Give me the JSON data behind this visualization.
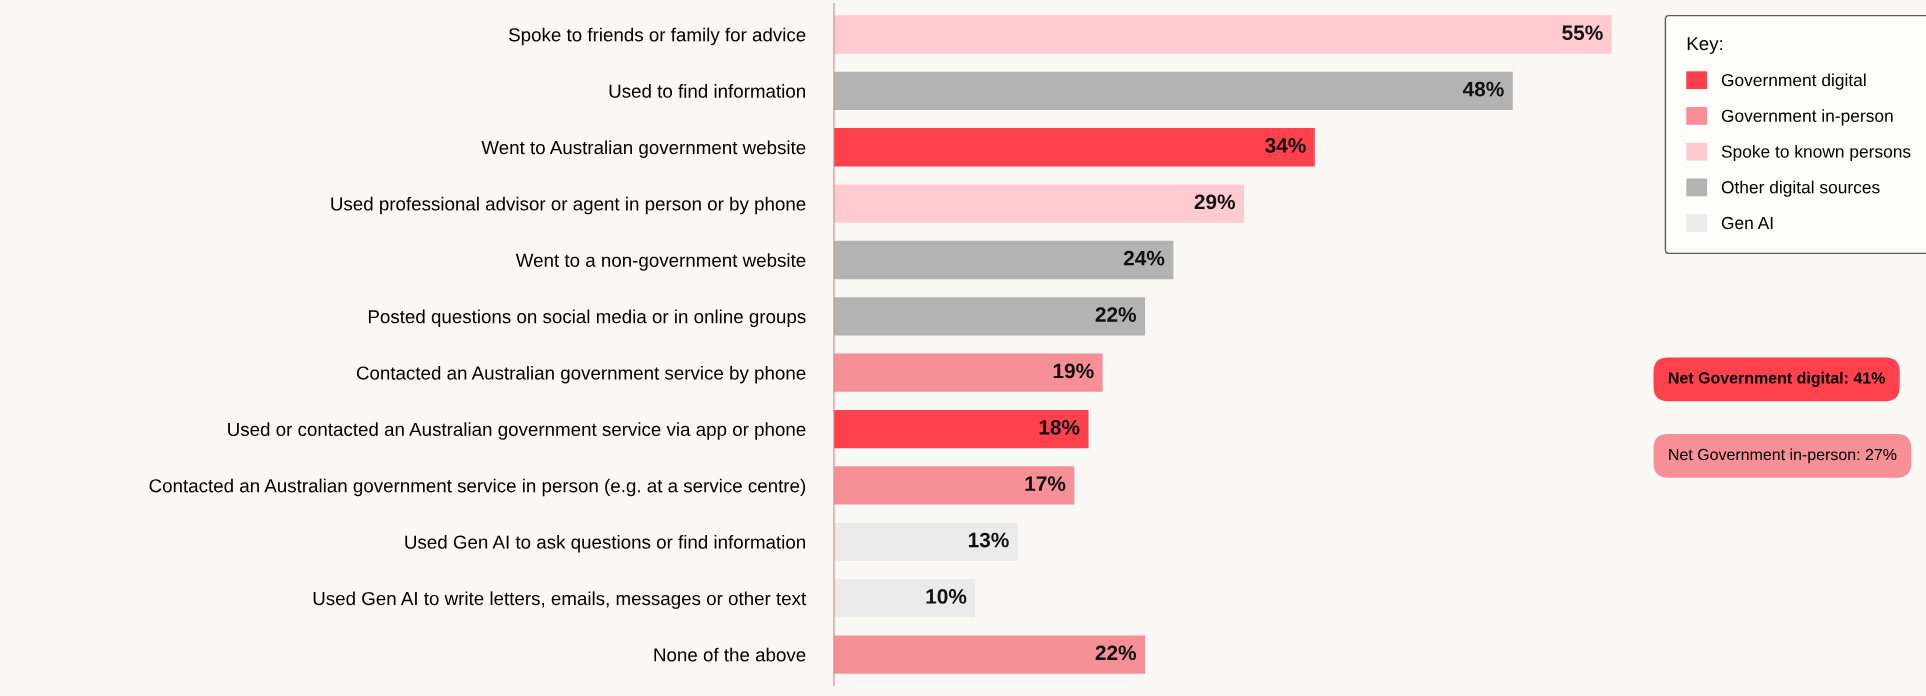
{
  "chart_data": {
    "type": "bar",
    "orientation": "horizontal",
    "legend": "right",
    "legend_title": "Key:",
    "grid": false,
    "categories": [
      "Spoke to friends or family for advice",
      "Used to find information",
      "Went to Australian government website",
      "Used professional advisor or agent in person or by phone",
      "Went to a non-government website",
      "Posted questions on social media or in online groups",
      "Contacted an Australian government service by phone",
      "Used or contacted an Australian government service via app or phone",
      "Contacted an Australian government service in person (e.g. at a service centre)",
      "Used Gen AI to ask questions or find information",
      "Used Gen AI to write letters, emails, messages or other text",
      "None of the above"
    ],
    "series": [
      {
        "name": "Government digital",
        "color": "#ff414d",
        "values": [
          null,
          null,
          34,
          null,
          null,
          null,
          null,
          18,
          null,
          null,
          null,
          null
        ],
        "value_labels": [
          null,
          null,
          "34%",
          null,
          null,
          null,
          null,
          "18%",
          null,
          null,
          null,
          null
        ]
      },
      {
        "name": "Government in-person",
        "color": "#f78f96",
        "values": [
          null,
          null,
          null,
          null,
          null,
          null,
          19,
          null,
          17,
          null,
          null,
          22
        ],
        "value_labels": [
          null,
          null,
          null,
          null,
          null,
          null,
          "19%",
          null,
          "17%",
          null,
          null,
          "22%"
        ]
      },
      {
        "name": "Spoke to known persons",
        "color": "#ffcbd0",
        "values": [
          55,
          null,
          null,
          29,
          null,
          null,
          null,
          null,
          null,
          null,
          null,
          null
        ],
        "value_labels": [
          "55%",
          null,
          null,
          "29%",
          null,
          null,
          null,
          null,
          null,
          null,
          null,
          null
        ]
      },
      {
        "name": "Other digital sources",
        "color": "#b3b3b3",
        "values": [
          null,
          48,
          null,
          null,
          24,
          22,
          null,
          null,
          null,
          null,
          null,
          null
        ],
        "value_labels": [
          null,
          "48%",
          null,
          null,
          "24%",
          "22%",
          null,
          null,
          null,
          null,
          null,
          null
        ]
      },
      {
        "name": "Gen AI",
        "color": "#ebebeb",
        "values": [
          null,
          null,
          null,
          null,
          null,
          null,
          null,
          null,
          null,
          13,
          10,
          null
        ],
        "value_labels": [
          null,
          null,
          null,
          null,
          null,
          null,
          null,
          null,
          null,
          "13%",
          "10%",
          null
        ]
      }
    ],
    "annotations": [
      "Net Government digital: 41%",
      "Net Government in-person: 27%"
    ]
  }
}
